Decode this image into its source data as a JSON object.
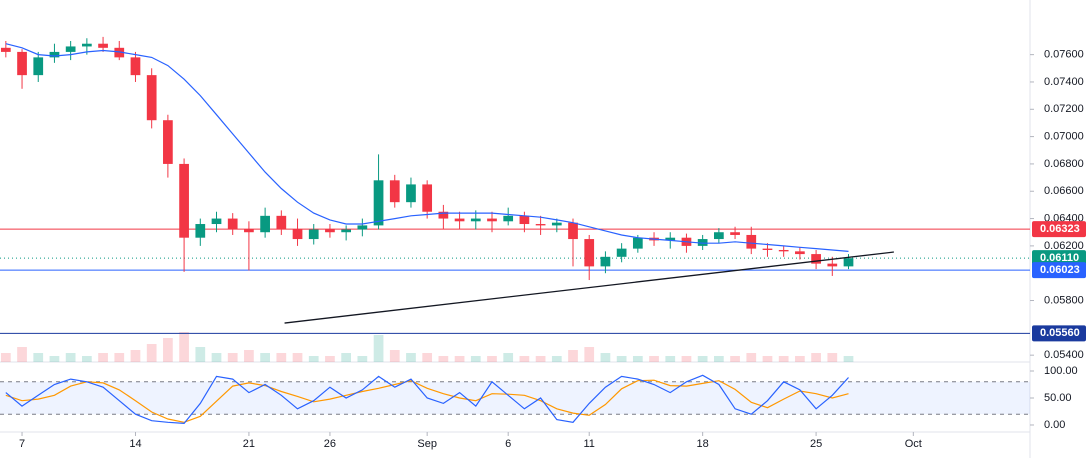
{
  "chart_data": {
    "type": "candlestick",
    "x": [
      -1,
      0,
      1,
      2,
      3,
      4,
      5,
      6,
      7,
      8,
      9,
      10,
      11,
      12,
      13,
      14,
      15,
      16,
      17,
      18,
      19,
      20,
      21,
      22,
      23,
      24,
      25,
      26,
      27,
      28,
      29,
      30,
      31,
      32,
      33,
      34,
      35,
      36,
      37,
      38,
      39,
      40,
      41,
      42,
      43,
      44,
      45,
      46,
      47,
      48,
      49,
      50,
      51
    ],
    "open": [
      0.0765,
      0.0762,
      0.0745,
      0.0758,
      0.0762,
      0.0766,
      0.0768,
      0.0765,
      0.0758,
      0.0745,
      0.0712,
      0.068,
      0.0626,
      0.0636,
      0.064,
      0.0632,
      0.063,
      0.0642,
      0.0632,
      0.0625,
      0.0632,
      0.063,
      0.0632,
      0.0635,
      0.0668,
      0.0652,
      0.0665,
      0.0645,
      0.064,
      0.0638,
      0.064,
      0.0638,
      0.0642,
      0.0636,
      0.0635,
      0.0637,
      0.0625,
      0.0605,
      0.0612,
      0.0618,
      0.0626,
      0.0624,
      0.0626,
      0.062,
      0.0625,
      0.063,
      0.0628,
      0.0618,
      0.0617,
      0.0616,
      0.0614,
      0.0607,
      0.0605
    ],
    "high": [
      0.077,
      0.0764,
      0.0762,
      0.0768,
      0.077,
      0.0772,
      0.0773,
      0.077,
      0.0762,
      0.075,
      0.0716,
      0.0684,
      0.064,
      0.0645,
      0.0644,
      0.0638,
      0.0648,
      0.0646,
      0.064,
      0.0636,
      0.0636,
      0.0635,
      0.064,
      0.0687,
      0.0672,
      0.067,
      0.0668,
      0.065,
      0.0645,
      0.0646,
      0.0645,
      0.0648,
      0.0645,
      0.0642,
      0.064,
      0.064,
      0.0628,
      0.0616,
      0.0622,
      0.0628,
      0.063,
      0.063,
      0.0629,
      0.0628,
      0.0633,
      0.0634,
      0.0634,
      0.0622,
      0.062,
      0.0619,
      0.0617,
      0.0612,
      0.0614
    ],
    "low": [
      0.0758,
      0.0735,
      0.074,
      0.0754,
      0.0756,
      0.076,
      0.0762,
      0.0756,
      0.074,
      0.0706,
      0.067,
      0.0601,
      0.062,
      0.063,
      0.0628,
      0.0602,
      0.0626,
      0.0628,
      0.062,
      0.0621,
      0.0626,
      0.0624,
      0.0627,
      0.0632,
      0.0648,
      0.0648,
      0.064,
      0.0632,
      0.0632,
      0.0632,
      0.063,
      0.0635,
      0.063,
      0.0628,
      0.063,
      0.0605,
      0.0595,
      0.06,
      0.0608,
      0.0615,
      0.062,
      0.0618,
      0.0615,
      0.0617,
      0.0622,
      0.0625,
      0.0614,
      0.0612,
      0.0612,
      0.061,
      0.0603,
      0.0598,
      0.0603
    ],
    "close": [
      0.0762,
      0.0745,
      0.0758,
      0.0762,
      0.0766,
      0.0768,
      0.0765,
      0.0758,
      0.0745,
      0.0712,
      0.068,
      0.0626,
      0.0636,
      0.064,
      0.0632,
      0.063,
      0.0642,
      0.0632,
      0.0625,
      0.0632,
      0.063,
      0.0632,
      0.0635,
      0.0668,
      0.0652,
      0.0665,
      0.0645,
      0.064,
      0.0638,
      0.064,
      0.0638,
      0.0642,
      0.0636,
      0.0635,
      0.0637,
      0.0625,
      0.0605,
      0.0612,
      0.0618,
      0.0626,
      0.0624,
      0.0626,
      0.062,
      0.0625,
      0.063,
      0.0628,
      0.0618,
      0.0617,
      0.0616,
      0.0614,
      0.0607,
      0.0605,
      0.0611
    ],
    "volume": [
      3,
      5,
      3,
      2,
      3,
      2,
      3,
      3,
      4,
      6,
      8,
      10,
      5,
      3,
      3,
      4,
      3,
      3,
      3,
      2,
      2,
      3,
      2,
      9,
      4,
      3,
      3,
      2,
      2,
      2,
      2,
      3,
      2,
      2,
      2,
      4,
      5,
      3,
      2,
      2,
      2,
      2,
      2,
      2,
      2,
      2,
      3,
      2,
      2,
      2,
      3,
      3,
      2
    ],
    "ma": [
      0.0768,
      0.0765,
      0.076,
      0.0759,
      0.076,
      0.0762,
      0.0763,
      0.0762,
      0.076,
      0.0758,
      0.0752,
      0.0742,
      0.073,
      0.0716,
      0.0702,
      0.0688,
      0.0674,
      0.0662,
      0.0652,
      0.0644,
      0.0639,
      0.0636,
      0.0636,
      0.0638,
      0.064,
      0.0642,
      0.0643,
      0.0644,
      0.0644,
      0.0644,
      0.0644,
      0.0643,
      0.0642,
      0.0641,
      0.0639,
      0.0637,
      0.0634,
      0.0631,
      0.0628,
      0.0626,
      0.0625,
      0.0624,
      0.0623,
      0.0622,
      0.0622,
      0.0623,
      0.0622,
      0.0621,
      0.062,
      0.0619,
      0.0618,
      0.0617,
      0.0616
    ],
    "stoch_k": [
      60,
      35,
      55,
      75,
      85,
      80,
      70,
      45,
      20,
      8,
      5,
      3,
      40,
      90,
      85,
      60,
      75,
      55,
      30,
      45,
      70,
      50,
      65,
      90,
      70,
      85,
      50,
      40,
      60,
      35,
      80,
      55,
      30,
      50,
      10,
      5,
      40,
      70,
      90,
      85,
      75,
      60,
      80,
      92,
      75,
      30,
      20,
      45,
      80,
      65,
      30,
      55,
      88
    ],
    "stoch_d": [
      55,
      45,
      48,
      55,
      72,
      80,
      78,
      65,
      45,
      24,
      11,
      5,
      16,
      44,
      72,
      78,
      73,
      62,
      53,
      43,
      48,
      55,
      62,
      68,
      75,
      82,
      68,
      58,
      50,
      45,
      58,
      57,
      55,
      45,
      30,
      22,
      18,
      38,
      67,
      82,
      83,
      73,
      72,
      77,
      82,
      66,
      42,
      32,
      48,
      63,
      58,
      50,
      58
    ],
    "up_color": "#089981",
    "down_color": "#f23645",
    "ma_color": "#2962ff",
    "k_color": "#2962ff",
    "d_color": "#ff9800",
    "xlim": [
      -1.36,
      62.2
    ],
    "xticks": [
      {
        "value": 0,
        "label": "7"
      },
      {
        "value": 7,
        "label": "14"
      },
      {
        "value": 14,
        "label": "21"
      },
      {
        "value": 19,
        "label": "26"
      },
      {
        "value": 25,
        "label": "Sep"
      },
      {
        "value": 30,
        "label": "6"
      },
      {
        "value": 35,
        "label": "11"
      },
      {
        "value": 42,
        "label": "18"
      },
      {
        "value": 49,
        "label": "25"
      },
      {
        "value": 55,
        "label": "Oct"
      }
    ],
    "ylim": [
      0.0535,
      0.08
    ],
    "yticks": [
      {
        "value": 0.076,
        "label": "0.07600"
      },
      {
        "value": 0.074,
        "label": "0.07400"
      },
      {
        "value": 0.072,
        "label": "0.07200"
      },
      {
        "value": 0.07,
        "label": "0.07000"
      },
      {
        "value": 0.068,
        "label": "0.06800"
      },
      {
        "value": 0.066,
        "label": "0.06600"
      },
      {
        "value": 0.064,
        "label": "0.06400"
      },
      {
        "value": 0.062,
        "label": "0.06200"
      },
      {
        "value": 0.058,
        "label": "0.05800"
      },
      {
        "value": 0.054,
        "label": "0.05400"
      }
    ],
    "levels": [
      {
        "value": 0.06323,
        "label": "0.06323",
        "color": "#f23645",
        "style": "solid"
      },
      {
        "value": 0.0611,
        "label": "0.06110",
        "color": "#089981",
        "style": "dotted"
      },
      {
        "value": 0.06023,
        "label": "0.06023",
        "color": "#2962ff",
        "style": "solid"
      },
      {
        "value": 0.0556,
        "label": "0.05560",
        "color": "#1a3a9e",
        "style": "solid"
      }
    ],
    "trendline": {
      "x": [
        16.2,
        53.8
      ],
      "y": [
        0.05635,
        0.06155
      ],
      "color": "#131722"
    },
    "y2lim": [
      -13,
      116.7
    ],
    "y2ticks": [
      {
        "value": 100,
        "label": "100.00"
      },
      {
        "value": 50,
        "label": "50.00"
      },
      {
        "value": 0,
        "label": "0.00"
      }
    ],
    "stoch_band": [
      20,
      80
    ]
  }
}
